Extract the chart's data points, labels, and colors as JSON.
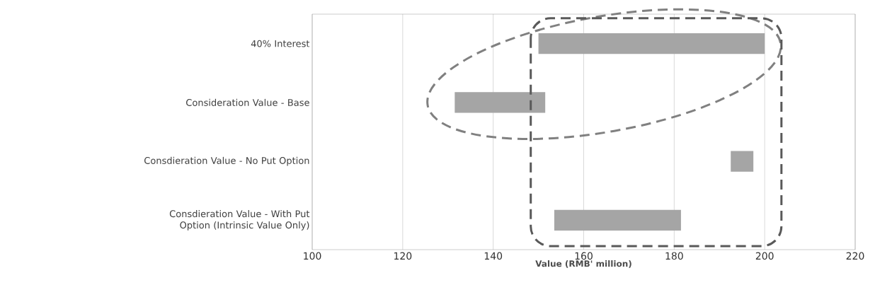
{
  "chart_data": {
    "type": "bar",
    "orientation": "horizontal",
    "categories": [
      "40% Interest",
      "Consideration Value - Base",
      "Consdieration Value - No Put Option",
      "Consdieration Value - With Put Option (Intrinsic Value Only)"
    ],
    "base": [
      150,
      131.5,
      192.5,
      153.5
    ],
    "values": [
      50,
      20,
      5,
      28
    ],
    "color": "#a5a5a5",
    "xlabel": "Value (RMB' million)",
    "xlim": [
      100,
      220
    ],
    "xticks": [
      100,
      120,
      140,
      160,
      180,
      200,
      220
    ],
    "grid": "x"
  }
}
